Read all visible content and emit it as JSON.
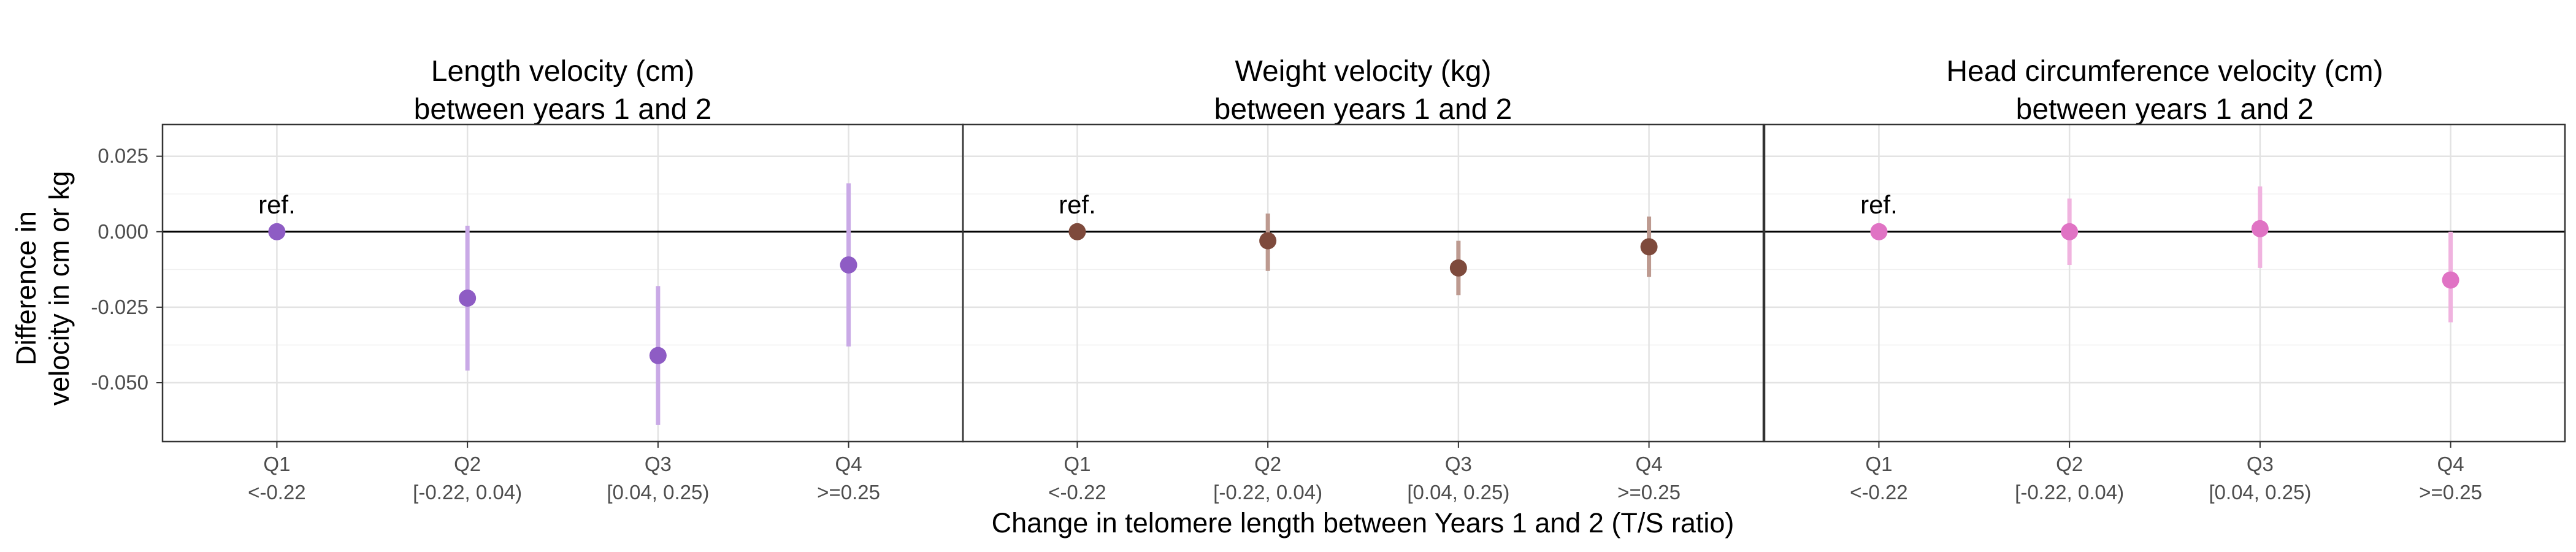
{
  "figure": {
    "ylabel": [
      "Difference in",
      "velocity in cm or kg"
    ],
    "xlabel": "Change in telomere length between Years 1 and 2 (T/S ratio)"
  },
  "chart_data": [
    {
      "type": "scatter",
      "title": "Length velocity (cm)\nbetween years 1 and 2",
      "title_lines": [
        "Length velocity (cm)",
        "between years 1 and 2"
      ],
      "categories": [
        "Q1",
        "Q2",
        "Q3",
        "Q4"
      ],
      "category_sublabels": [
        "<-0.22",
        "[-0.22, 0.04)",
        "[0.04, 0.25)",
        ">=0.25"
      ],
      "values": [
        0.0,
        -0.022,
        -0.041,
        -0.011
      ],
      "ci_lower": [
        null,
        -0.046,
        -0.064,
        -0.038
      ],
      "ci_upper": [
        null,
        0.002,
        -0.018,
        0.016
      ],
      "annotation": "ref.",
      "color": "#8e5cc4",
      "ci_color": "#c9a9e6",
      "ylim": [
        -0.0695,
        0.0355
      ],
      "yticks": [
        0.025,
        0.0,
        -0.025,
        -0.05
      ],
      "ytick_labels": [
        "0.025",
        "0.000",
        "-0.025",
        "-0.050"
      ],
      "reference_line": 0,
      "grid": true
    },
    {
      "type": "scatter",
      "title": "Weight velocity (kg)\nbetween years 1 and 2",
      "title_lines": [
        "Weight velocity (kg)",
        "between years 1 and 2"
      ],
      "categories": [
        "Q1",
        "Q2",
        "Q3",
        "Q4"
      ],
      "category_sublabels": [
        "<-0.22",
        "[-0.22, 0.04)",
        "[0.04, 0.25)",
        ">=0.25"
      ],
      "values": [
        0.0,
        -0.003,
        -0.012,
        -0.005
      ],
      "ci_lower": [
        null,
        -0.013,
        -0.021,
        -0.015
      ],
      "ci_upper": [
        null,
        0.006,
        -0.003,
        0.005
      ],
      "annotation": "ref.",
      "color": "#7e4a3c",
      "ci_color": "#bd9a90",
      "ylim": [
        -0.0695,
        0.0355
      ],
      "reference_line": 0,
      "grid": true
    },
    {
      "type": "scatter",
      "title": "Head circumference velocity (cm)\nbetween years 1 and 2",
      "title_lines": [
        "Head circumference velocity (cm)",
        "between years 1 and 2"
      ],
      "categories": [
        "Q1",
        "Q2",
        "Q3",
        "Q4"
      ],
      "category_sublabels": [
        "<-0.22",
        "[-0.22, 0.04)",
        "[0.04, 0.25)",
        ">=0.25"
      ],
      "values": [
        0.0,
        0.0,
        0.001,
        -0.016
      ],
      "ci_lower": [
        null,
        -0.011,
        -0.012,
        -0.03
      ],
      "ci_upper": [
        null,
        0.011,
        0.015,
        0.0
      ],
      "annotation": "ref.",
      "color": "#e073c4",
      "ci_color": "#f0b3df",
      "ylim": [
        -0.0695,
        0.0355
      ],
      "reference_line": 0,
      "grid": true
    }
  ]
}
